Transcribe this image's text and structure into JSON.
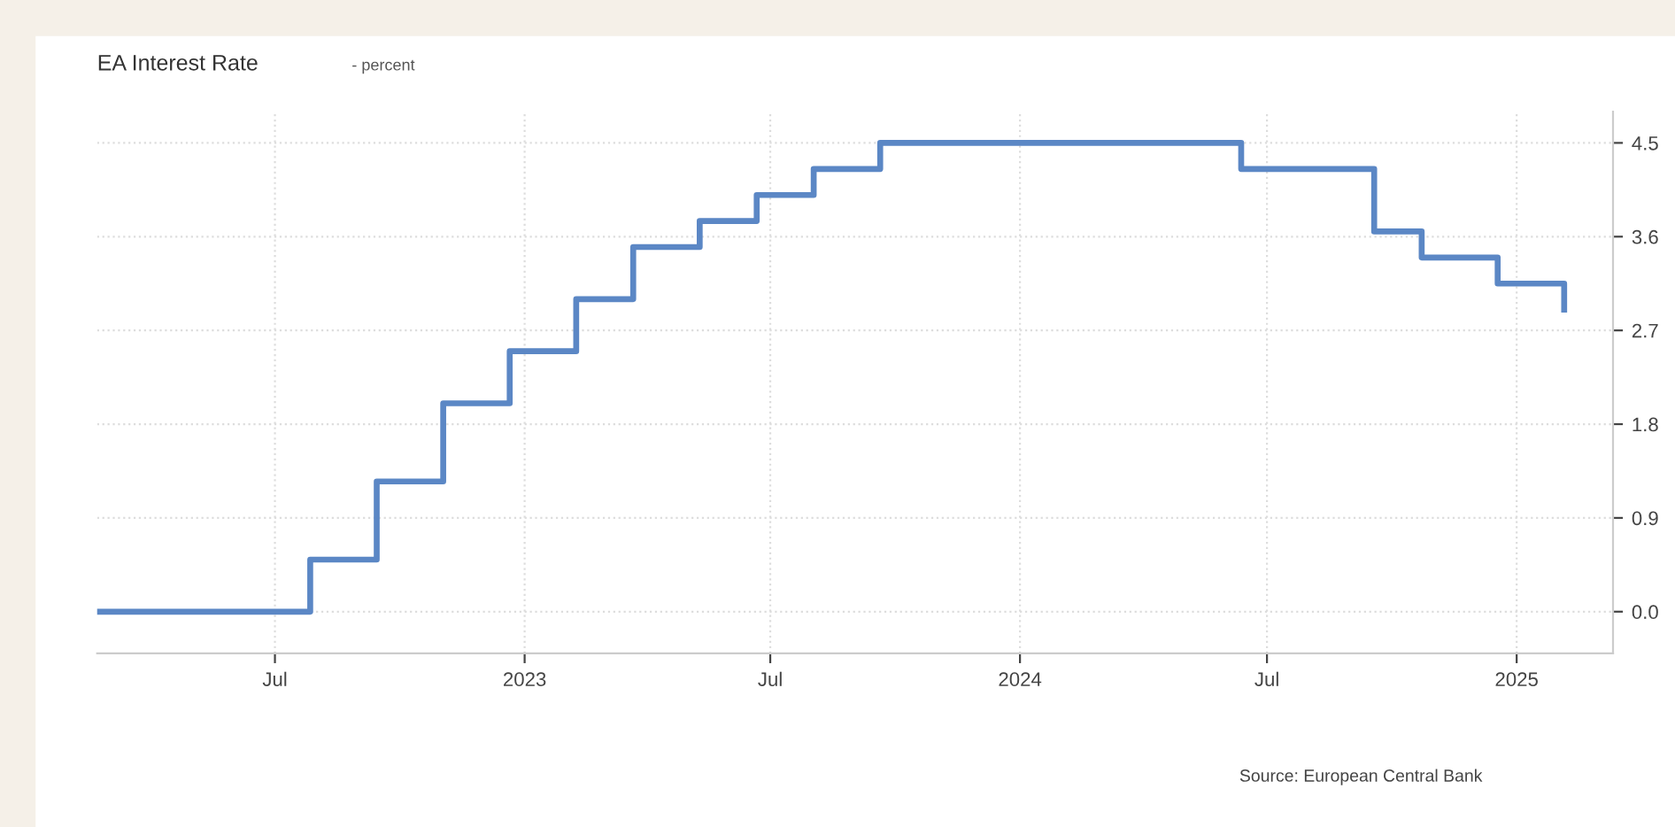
{
  "chart_data": {
    "type": "step",
    "title": "EA Interest Rate",
    "subtitle": "- percent",
    "x": [
      "2022-02-20",
      "2022-07-27",
      "2022-09-14",
      "2022-11-02",
      "2022-12-21",
      "2023-02-08",
      "2023-03-22",
      "2023-05-10",
      "2023-06-21",
      "2023-08-02",
      "2023-09-20",
      "2024-06-12",
      "2024-09-18",
      "2024-10-23",
      "2024-12-18",
      "2025-02-05"
    ],
    "series": [
      {
        "color": "#5b87c5",
        "values": [
          0.0,
          0.5,
          1.25,
          2.0,
          2.5,
          3.0,
          3.5,
          3.75,
          4.0,
          4.25,
          4.5,
          4.25,
          3.65,
          3.4,
          3.15,
          2.9
        ]
      }
    ],
    "xlim": [
      "2022-02-20",
      "2025-03-13"
    ],
    "xticks": [
      {
        "value": "2022-07-01",
        "label": "Jul"
      },
      {
        "value": "2023-01-01",
        "label": "2023"
      },
      {
        "value": "2023-07-01",
        "label": "Jul"
      },
      {
        "value": "2024-01-01",
        "label": "2024"
      },
      {
        "value": "2024-07-01",
        "label": "Jul"
      },
      {
        "value": "2025-01-01",
        "label": "2025"
      }
    ],
    "ylim": [
      -0.4,
      4.8
    ],
    "yticks": [
      {
        "value": 0,
        "label": "0.0"
      },
      {
        "value": 0.9,
        "label": "0.9"
      },
      {
        "value": 1.8,
        "label": "1.8"
      },
      {
        "value": 2.7,
        "label": "2.7"
      },
      {
        "value": 3.6,
        "label": "3.6"
      },
      {
        "value": 4.5,
        "label": "4.5"
      }
    ],
    "grid": true,
    "annotations": [
      "Source: European Central Bank"
    ]
  }
}
